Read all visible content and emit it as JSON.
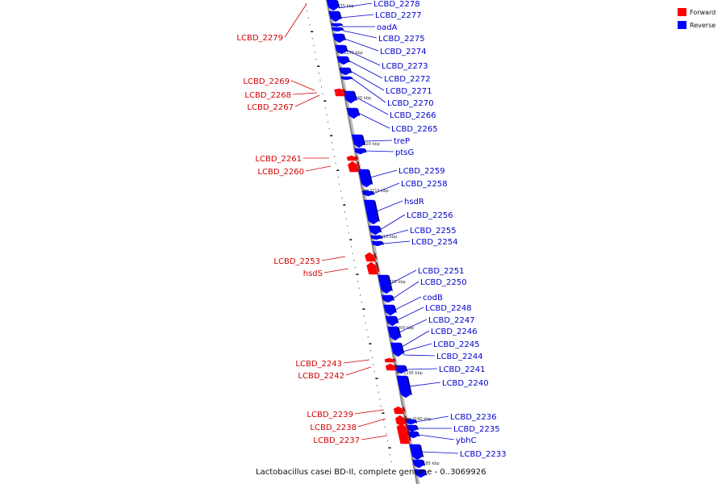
{
  "colors": {
    "forward": "#ff0000",
    "reverse": "#0000ff",
    "forward_label": "#d40000",
    "reverse_label": "#0000cc",
    "axis": "#888888",
    "tick": "#000000"
  },
  "legend": {
    "forward": "Forward",
    "reverse": "Reverse"
  },
  "caption": "Lactobacillus casei BD-II, complete genome - 0..3069926",
  "tick_labels": [
    "2235 kbp",
    "2230 kbp",
    "2225 kbp",
    "2220 kbp",
    "2215 kbp",
    "2210 kbp",
    "2205 kbp",
    "2200 kbp",
    "2195 kbp",
    "2190 kbp",
    "2185 kbp"
  ],
  "reverse_genes": [
    "LCBD_2278",
    "LCBD_2277",
    "oadA",
    "LCBD_2275",
    "LCBD_2274",
    "LCBD_2273",
    "LCBD_2272",
    "LCBD_2271",
    "LCBD_2270",
    "LCBD_2266",
    "LCBD_2265",
    "treP",
    "ptsG",
    "LCBD_2259",
    "LCBD_2258",
    "hsdR",
    "LCBD_2256",
    "LCBD_2255",
    "LCBD_2254",
    "LCBD_2251",
    "LCBD_2250",
    "codB",
    "LCBD_2248",
    "LCBD_2247",
    "LCBD_2246",
    "LCBD_2245",
    "LCBD_2244",
    "LCBD_2241",
    "LCBD_2240",
    "LCBD_2236",
    "LCBD_2235",
    "ybhC",
    "LCBD_2233"
  ],
  "forward_genes": [
    "LCBD_2279",
    "LCBD_2269",
    "LCBD_2268",
    "LCBD_2267",
    "LCBD_2261",
    "LCBD_2260",
    "LCBD_2253",
    "hsdS",
    "LCBD_2243",
    "LCBD_2242",
    "LCBD_2239",
    "LCBD_2238",
    "LCBD_2237"
  ]
}
